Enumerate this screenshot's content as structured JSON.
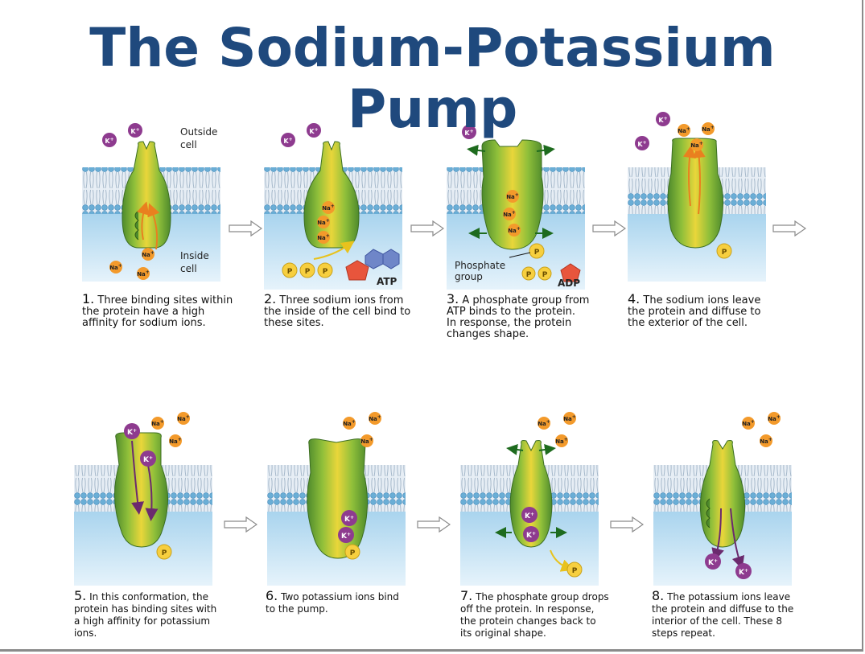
{
  "title_lines": [
    "The Sodium-Potassium",
    "Pump"
  ],
  "labels": {
    "outside": [
      "Outside",
      "cell"
    ],
    "inside": [
      "Inside",
      "cell"
    ],
    "phosphate": [
      "Phosphate",
      "group"
    ],
    "atp": "ATP",
    "adp": "ADP",
    "p": "P"
  },
  "ions": {
    "na": "Na",
    "k": "K",
    "plus": "+"
  },
  "colors": {
    "title": "#1f497d",
    "membrane_head": "#6aaed6",
    "membrane_tail": "#d8e4ee",
    "cytoplasm": "#bfe0f2",
    "protein_dark": "#4e8a2c",
    "protein_light": "#e9d63a",
    "sodium": "#f39a2b",
    "potassium": "#8e3b8f",
    "phosphate": "#f7cf3f",
    "ribose": "#e8553c",
    "adenine": "#6f86c8"
  },
  "steps": [
    {
      "num": "1.",
      "text": [
        "Three binding sites within",
        "the protein have a high",
        "affinity for sodium ions."
      ]
    },
    {
      "num": "2.",
      "text": [
        "Three sodium ions from",
        "the inside of the cell bind to",
        "these sites."
      ]
    },
    {
      "num": "3.",
      "text": [
        "A phosphate group from",
        "ATP binds to the protein.",
        "In response, the protein",
        "changes shape."
      ]
    },
    {
      "num": "4.",
      "text": [
        "The sodium ions leave",
        "the protein and diffuse to",
        "the exterior of the cell."
      ]
    },
    {
      "num": "5.",
      "text": [
        "In this conformation, the",
        "protein has binding sites with",
        "a high affinity for potassium",
        "ions."
      ]
    },
    {
      "num": "6.",
      "text": [
        "Two potassium ions bind",
        "to the pump."
      ]
    },
    {
      "num": "7.",
      "text": [
        "The phosphate group drops",
        "off the protein. In response,",
        "the protein changes back to",
        "its original shape."
      ]
    },
    {
      "num": "8.",
      "text": [
        "The potassium ions leave",
        "the protein and diffuse to the",
        "interior of the cell. These 8",
        "steps repeat."
      ]
    }
  ]
}
